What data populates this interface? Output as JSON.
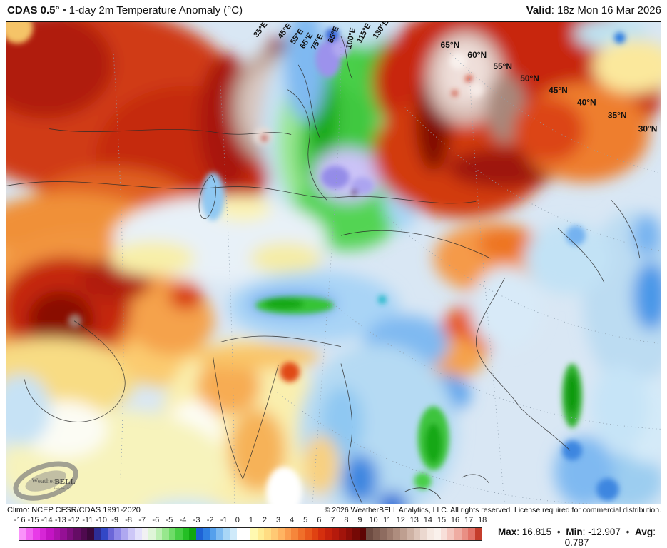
{
  "header": {
    "model": "CDAS 0.5°",
    "separator": "•",
    "title": "1-day 2m Temperature Anomaly (°C)",
    "valid_label": "Valid",
    "valid_value": ": 18z Mon 16 Mar 2026"
  },
  "map": {
    "lon_labels": [
      "35°E",
      "45°E",
      "55°E",
      "65°E",
      "75°E",
      "85°E",
      "100°E",
      "115°E",
      "130°E"
    ],
    "lat_labels": [
      "65°N",
      "60°N",
      "55°N",
      "50°N",
      "45°N",
      "40°N",
      "35°N",
      "30°N"
    ],
    "watermark": {
      "name_prefix": "Weather",
      "name_suffix": "BELL",
      "tagline": "Analytics LLC"
    }
  },
  "footer": {
    "climo": "Climo: NCEP CFSR/CDAS 1991-2020",
    "copyright": "© 2026 WeatherBELL Analytics, LLC. All rights reserved. License required for commercial distribution."
  },
  "colorbar": {
    "tick_labels": [
      "-16",
      "-15",
      "-14",
      "-13",
      "-12",
      "-11",
      "-10",
      "-9",
      "-8",
      "-7",
      "-6",
      "-5",
      "-4",
      "-3",
      "-2",
      "-1",
      "0",
      "1",
      "2",
      "3",
      "4",
      "5",
      "6",
      "7",
      "8",
      "9",
      "10",
      "11",
      "12",
      "13",
      "14",
      "15",
      "16",
      "17",
      "18"
    ],
    "cell_colors": [
      "#FA93FA",
      "#F163F1",
      "#E83BE8",
      "#D626D6",
      "#C414C4",
      "#AD12AD",
      "#951095",
      "#7D0E7D",
      "#650C65",
      "#4F0A4F",
      "#3B083B",
      "#2D2D96",
      "#3348C6",
      "#6B66D8",
      "#8F88E8",
      "#AFA8F0",
      "#CDC7F7",
      "#E4E1FB",
      "#F1F1F3",
      "#DFF5D8",
      "#BDEFB3",
      "#97E78D",
      "#6FDC68",
      "#47CF44",
      "#24BF24",
      "#10A810",
      "#1E63D6",
      "#2F80E3",
      "#55A0EC",
      "#7FBCF2",
      "#A8D6F7",
      "#CFEAFA",
      "#FFFFFF",
      "#FFFFFF",
      "#FFF9B0",
      "#FFEC94",
      "#FFDC82",
      "#FFC974",
      "#FFB462",
      "#FB9C4E",
      "#F6863B",
      "#F06F2A",
      "#E9581C",
      "#E04212",
      "#D52F0E",
      "#C6220C",
      "#B51A0C",
      "#A2140B",
      "#8D0E08",
      "#750905",
      "#5E0504",
      "#6E4C42",
      "#7E5C50",
      "#8E6C60",
      "#9E7C6E",
      "#AE8D7E",
      "#BE9F90",
      "#CEB2A4",
      "#DDC5B9",
      "#EBD8CF",
      "#F6E9E2",
      "#FAF1EC",
      "#F8DFD9",
      "#F4C7BF",
      "#EFACA2",
      "#E98F84",
      "#E27368",
      "#C53D2C"
    ]
  },
  "stats": {
    "max_label": "Max",
    "max_value": ": 16.815",
    "min_label": "Min",
    "min_value": ": -12.907",
    "avg_label": "Avg",
    "avg_value": ": 0.787",
    "bullet": "•"
  }
}
